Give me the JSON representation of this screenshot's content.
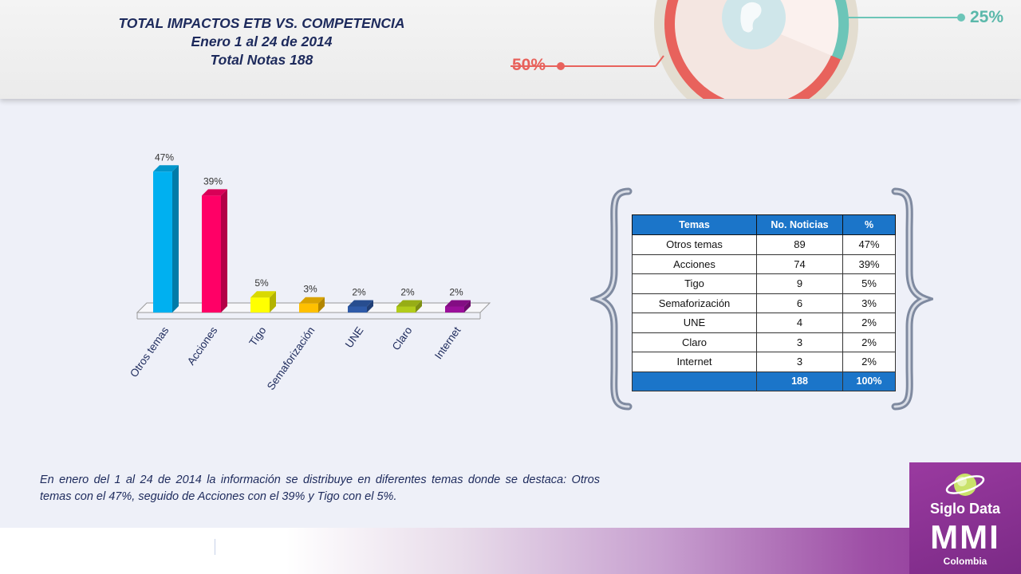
{
  "header": {
    "title": "TOTAL IMPACTOS ETB VS. COMPETENCIA",
    "subtitle": "Enero 1 al 24 de 2014",
    "notes": "Total Notas 188",
    "deco_left_pct": "50%",
    "deco_right_pct": "25%"
  },
  "chart_data": {
    "type": "bar",
    "categories": [
      "Otros temas",
      "Acciones",
      "Tigo",
      "Semaforización",
      "UNE",
      "Claro",
      "Internet"
    ],
    "values": [
      47,
      39,
      5,
      3,
      2,
      2,
      2
    ],
    "data_labels": [
      "47%",
      "39%",
      "5%",
      "3%",
      "2%",
      "2%",
      "2%"
    ],
    "colors": [
      "#00b0f0",
      "#ff0066",
      "#ffff00",
      "#ffc000",
      "#2e5aa8",
      "#b2cc1a",
      "#9a0f9a"
    ],
    "ylim": [
      0,
      50
    ],
    "grid": false,
    "style": "3d"
  },
  "table": {
    "headers": [
      "Temas",
      "No. Noticias",
      "%"
    ],
    "rows": [
      [
        "Otros temas",
        "89",
        "47%"
      ],
      [
        "Acciones",
        "74",
        "39%"
      ],
      [
        "Tigo",
        "9",
        "5%"
      ],
      [
        "Semaforización",
        "6",
        "3%"
      ],
      [
        "UNE",
        "4",
        "2%"
      ],
      [
        "Claro",
        "3",
        "2%"
      ],
      [
        "Internet",
        "3",
        "2%"
      ]
    ],
    "total": [
      "",
      "188",
      "100%"
    ]
  },
  "summary": "En enero del 1 al 24 de 2014 la información se distribuye en diferentes temas donde se destaca: Otros temas con el 47%, seguido de Acciones con el 39% y Tigo con el 5%.",
  "brand": {
    "name": "Siglo Data",
    "mmi": "MMI",
    "country": "Colombia"
  }
}
